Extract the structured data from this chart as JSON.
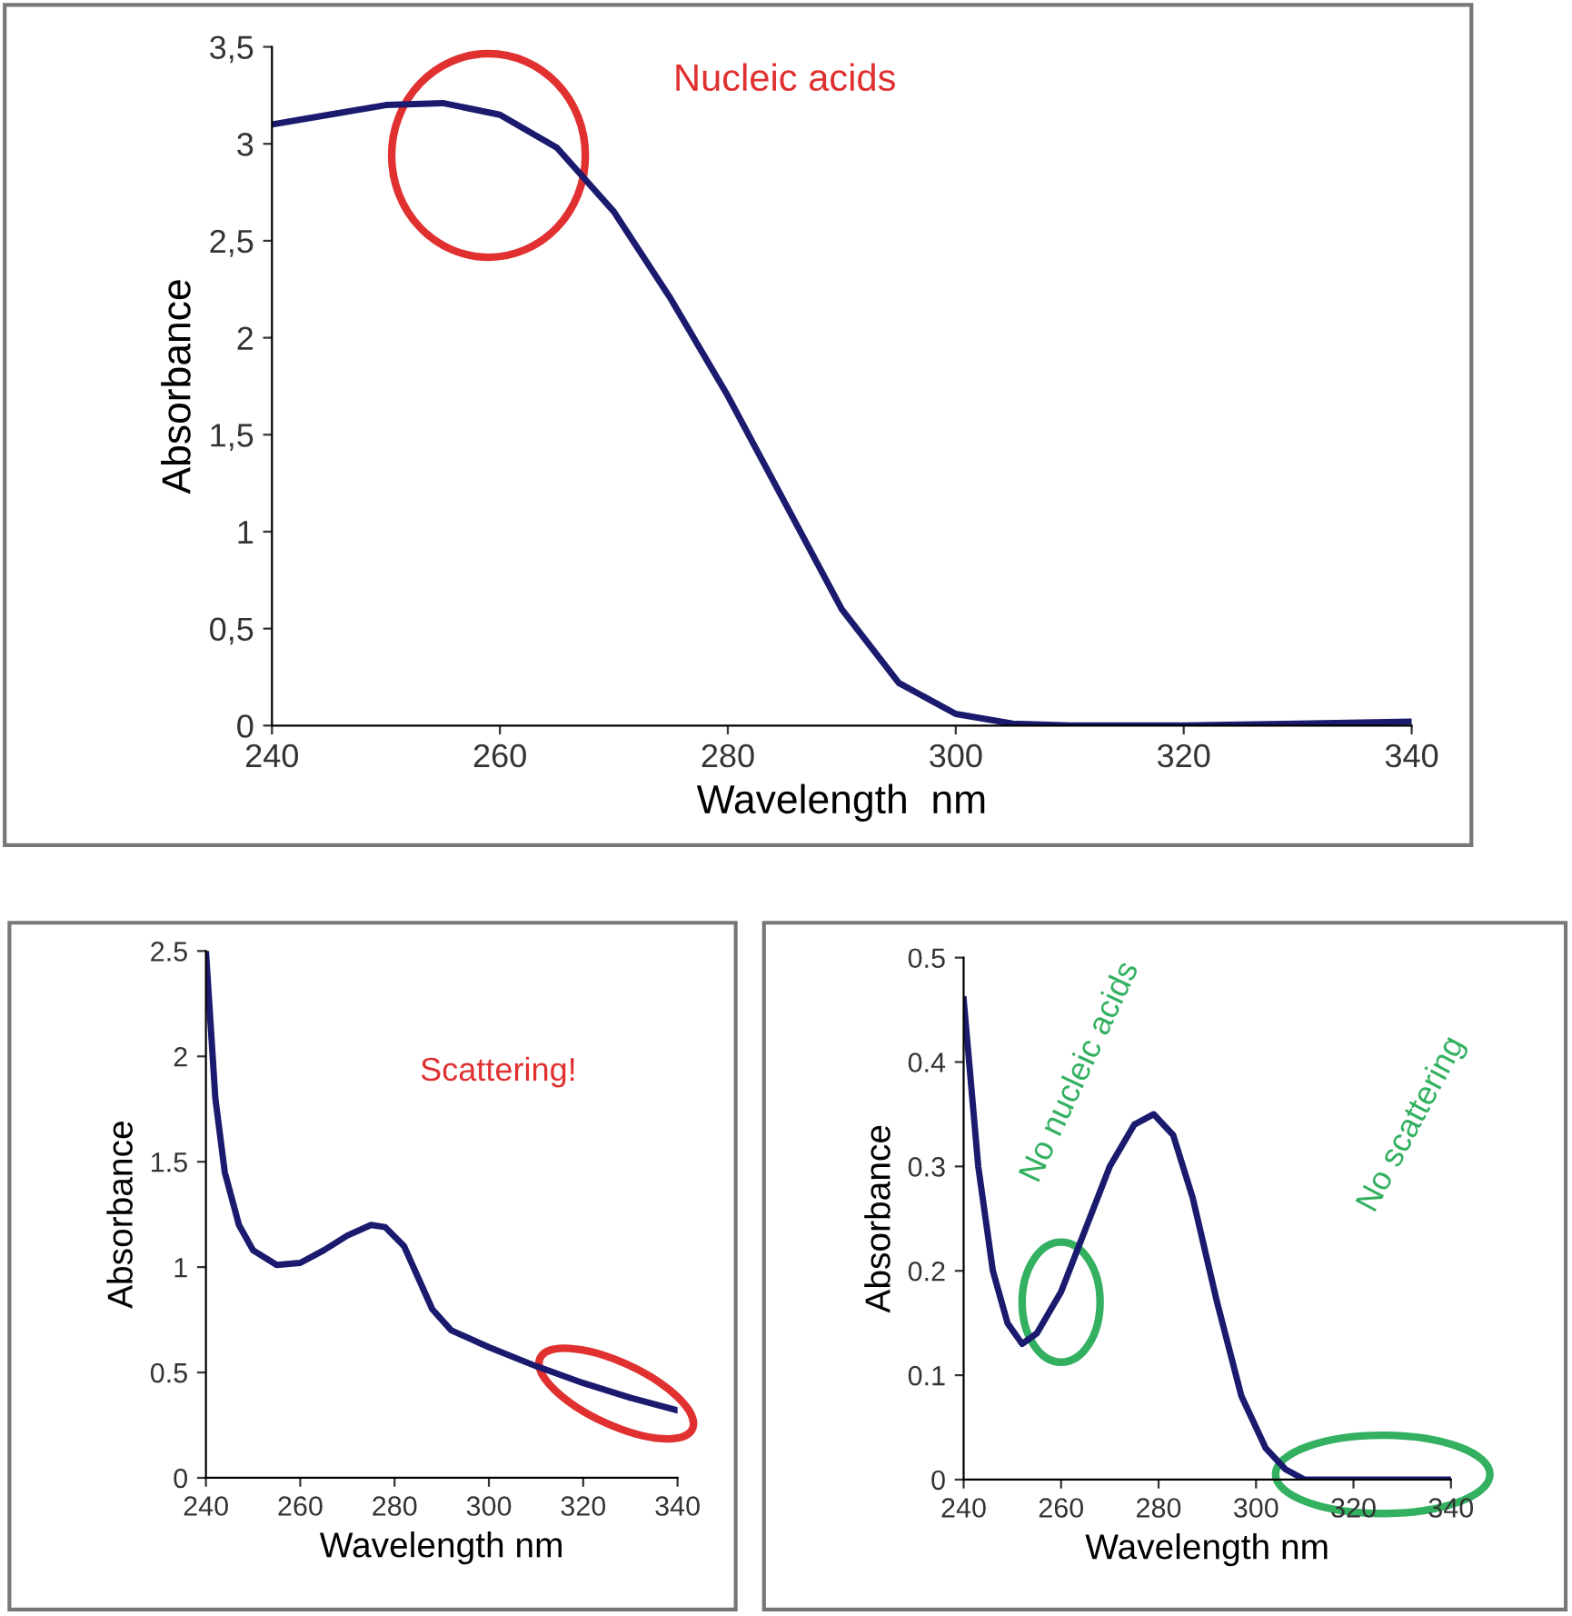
{
  "chart_data": [
    {
      "type": "line",
      "xlabel": "Wavelength  nm",
      "ylabel": "Absorbance",
      "x": [
        240,
        245,
        250,
        255,
        260,
        265,
        270,
        275,
        280,
        285,
        290,
        295,
        300,
        305,
        310,
        320,
        330,
        340
      ],
      "series": [
        {
          "color": "#1a1a6e",
          "values": [
            3.1,
            3.15,
            3.2,
            3.21,
            3.15,
            2.98,
            2.65,
            2.2,
            1.7,
            1.15,
            0.6,
            0.22,
            0.06,
            0.01,
            0.0,
            0.0,
            0.01,
            0.02
          ]
        }
      ],
      "xlim": [
        240,
        340
      ],
      "xticks": [
        240,
        260,
        280,
        300,
        320,
        340
      ],
      "ylim": [
        0,
        3.5
      ],
      "yticks": [
        0,
        {
          "value": 0.5,
          "label": "0,5"
        },
        1,
        {
          "value": 1.5,
          "label": "1,5"
        },
        2,
        {
          "value": 2.5,
          "label": "2,5"
        },
        3,
        {
          "value": 3.5,
          "label": "3,5"
        }
      ],
      "annotations": [
        "Nucleic acids"
      ]
    },
    {
      "type": "line",
      "xlabel": "Wavelength nm",
      "ylabel": "Absorbance",
      "x": [
        240,
        242,
        244,
        247,
        250,
        255,
        260,
        265,
        270,
        275,
        278,
        282,
        285,
        288,
        292,
        300,
        310,
        320,
        330,
        340
      ],
      "series": [
        {
          "color": "#1a1a6e",
          "values": [
            2.5,
            1.8,
            1.45,
            1.2,
            1.08,
            1.01,
            1.02,
            1.08,
            1.15,
            1.2,
            1.19,
            1.1,
            0.95,
            0.8,
            0.7,
            0.62,
            0.53,
            0.45,
            0.38,
            0.32
          ]
        }
      ],
      "xlim": [
        240,
        340
      ],
      "xticks": [
        240,
        260,
        280,
        300,
        320,
        340
      ],
      "ylim": [
        0,
        2.5
      ],
      "yticks": [
        0,
        0.5,
        1,
        1.5,
        2,
        2.5
      ],
      "annotations": [
        "Scattering!"
      ]
    },
    {
      "type": "line",
      "xlabel": "Wavelength nm",
      "ylabel": "Absorbance",
      "x": [
        240,
        243,
        246,
        249,
        252,
        255,
        260,
        265,
        270,
        275,
        279,
        283,
        287,
        292,
        297,
        302,
        306,
        310,
        320,
        340
      ],
      "series": [
        {
          "color": "#1a1a6e",
          "values": [
            0.46,
            0.3,
            0.2,
            0.15,
            0.13,
            0.14,
            0.18,
            0.24,
            0.3,
            0.34,
            0.35,
            0.33,
            0.27,
            0.17,
            0.08,
            0.03,
            0.01,
            0.0,
            0.0,
            0.0
          ]
        }
      ],
      "xlim": [
        240,
        340
      ],
      "xticks": [
        240,
        260,
        280,
        300,
        320,
        340
      ],
      "ylim": [
        0,
        0.5
      ],
      "yticks": [
        0,
        0.1,
        0.2,
        0.3,
        0.4,
        0.5
      ],
      "annotations": [
        "No nucleic acids",
        "No scattering"
      ]
    }
  ]
}
